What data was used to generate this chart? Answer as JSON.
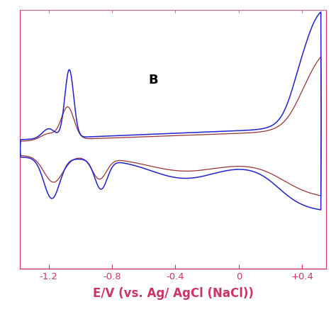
{
  "xlabel": "E/V (vs. Ag/ AgCl (NaCl))",
  "xlabel_fontsize": 12,
  "xlabel_fontweight": "bold",
  "annotation": "B",
  "xlim": [
    -1.38,
    0.55
  ],
  "ylim": [
    -0.75,
    0.85
  ],
  "xticks": [
    -1.2,
    -0.8,
    -0.4,
    0.0,
    0.4
  ],
  "xtick_labels": [
    "-1.2",
    "-0.8",
    "-0.4",
    "0",
    "+0.4"
  ],
  "tick_color": "#cc3366",
  "axis_color": "#cc3366",
  "line_blue": "#2222cc",
  "line_red": "#993333",
  "bg": "#ffffff",
  "top_spine_color": "#cc6688"
}
